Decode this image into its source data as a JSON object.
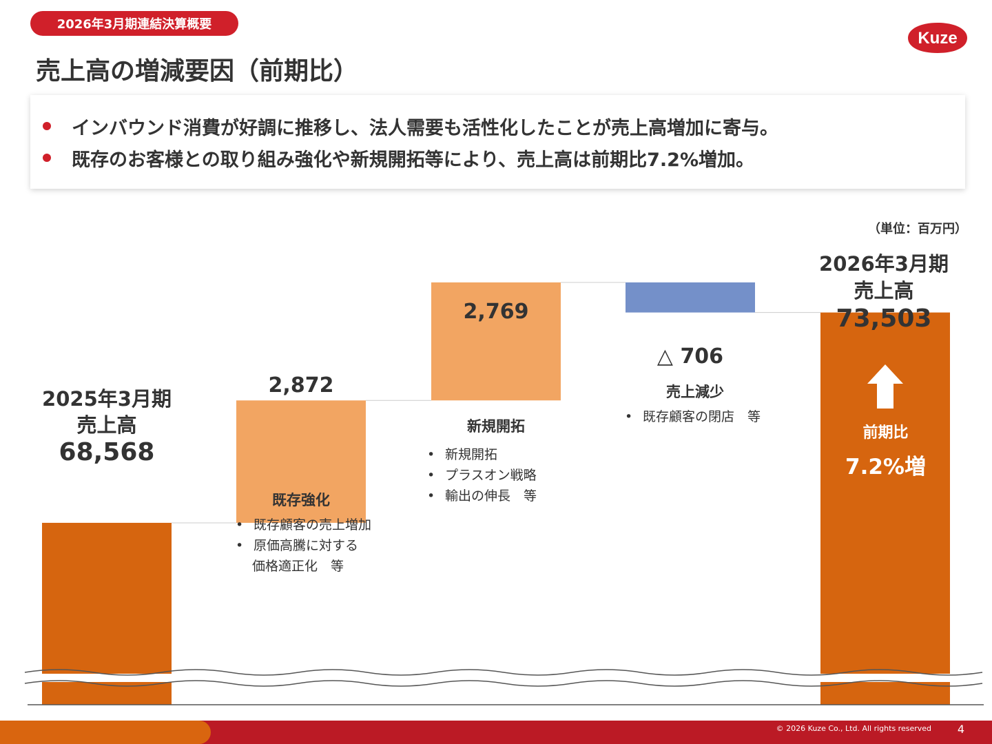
{
  "header": {
    "tag": "2026年3月期連結決算概要",
    "title": "売上高の増減要因（前期比）",
    "logo_text": "Kuze"
  },
  "summary": [
    "インバウンド消費が好調に推移し、法人需要も活性化したことが売上高増加に寄与。",
    "既存のお客様との取り組み強化や新規開拓等により、売上高は前期比7.2%増加。"
  ],
  "unit": "（単位：百万円）",
  "colors": {
    "total": "#d6650f",
    "increase": "#f2a562",
    "decrease": "#7490c9",
    "accent_red": "#d0202a"
  },
  "chart_data": {
    "type": "bar",
    "subtype": "waterfall",
    "categories": [
      "2025年3月期 売上高",
      "既存強化",
      "新規開拓",
      "売上減少",
      "2026年3月期 売上高"
    ],
    "steps": [
      {
        "label": "2025年3月期 売上高",
        "kind": "total",
        "value": 68568,
        "display": "68,568"
      },
      {
        "label": "既存強化",
        "kind": "increase",
        "value": 2872,
        "display": "2,872"
      },
      {
        "label": "新規開拓",
        "kind": "increase",
        "value": 2769,
        "display": "2,769"
      },
      {
        "label": "売上減少",
        "kind": "decrease",
        "value": -706,
        "display": "△ 706"
      },
      {
        "label": "2026年3月期 売上高",
        "kind": "total",
        "value": 73503,
        "display": "73,503"
      }
    ],
    "axis_break": true,
    "ylim": [
      64300,
      75000
    ],
    "grid": false,
    "legend": "none"
  },
  "totals": {
    "start": {
      "period": "2025年3月期",
      "label": "売上高",
      "value": "68,568"
    },
    "end": {
      "period": "2026年3月期",
      "label": "売上高",
      "value": "73,503"
    }
  },
  "factors": {
    "existing": {
      "title": "既存強化",
      "items": [
        "既存顧客の売上増加",
        "原価高騰に対する"
      ],
      "continuation": "価格適正化　等"
    },
    "new": {
      "title": "新規開拓",
      "items": [
        "新規開拓",
        "プラスオン戦略",
        "輸出の伸長　等"
      ]
    },
    "decrease": {
      "title": "売上減少",
      "items": [
        "既存顧客の閉店　等"
      ]
    }
  },
  "growth": {
    "label": "前期比",
    "value": "7.2%増",
    "icon": "up-arrow-icon"
  },
  "footer": {
    "copyright": "© 2026 Kuze Co., Ltd. All rights reserved",
    "page": "4"
  }
}
